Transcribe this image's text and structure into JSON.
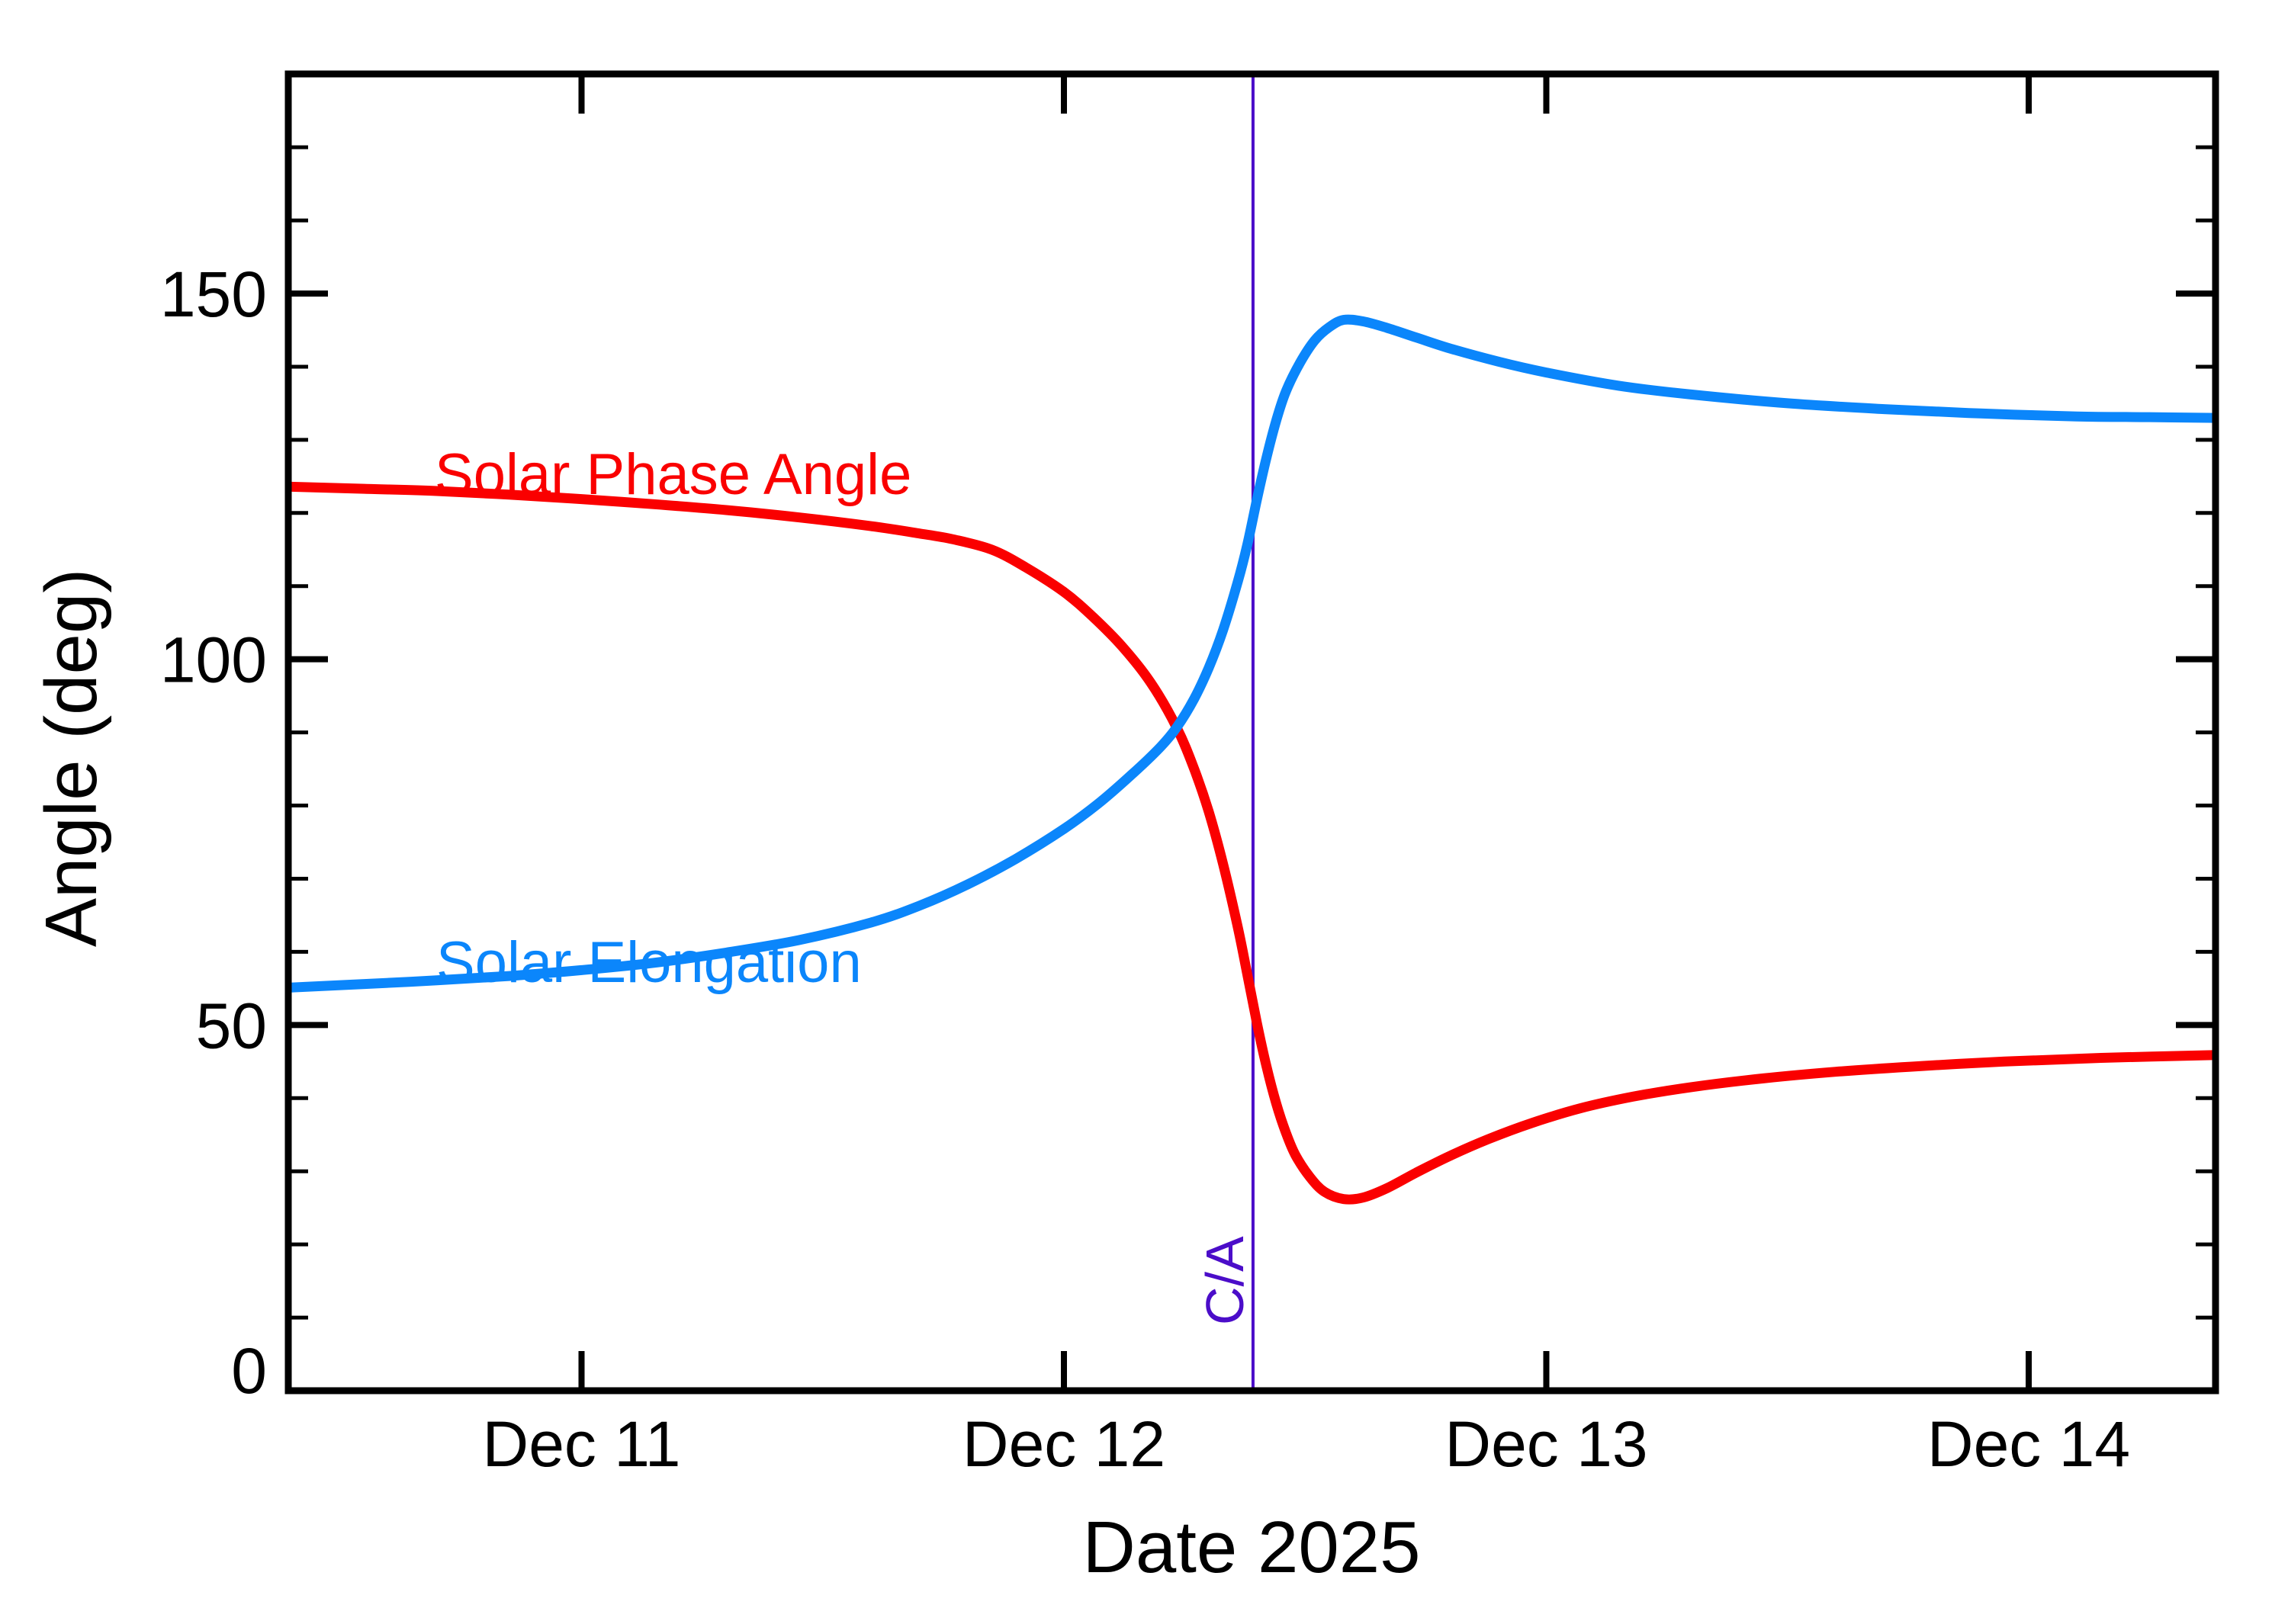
{
  "figure": {
    "background_color": "#ffffff",
    "frame_color": "#000000"
  },
  "axes": {
    "x": {
      "title": "Date 2025",
      "tick_labels": [
        "Dec 11",
        "Dec 12",
        "Dec 13",
        "Dec 14"
      ]
    },
    "y": {
      "title": "Angle (deg)",
      "tick_labels": [
        "0",
        "50",
        "100",
        "150"
      ]
    }
  },
  "series_labels": {
    "phase": "Solar Phase Angle",
    "elongation": "Solar Elongation"
  },
  "ca": {
    "label": "C/A",
    "day": 0.392,
    "color": "#4B0DC9"
  },
  "chart_data": {
    "type": "line",
    "title": "",
    "xlabel": "Date 2025",
    "ylabel": "Angle (deg)",
    "x_unit": "days relative to Dec 12 2025 00:00 UT",
    "xlim_days": [
      -1.608,
      2.388
    ],
    "ylim": [
      0,
      180
    ],
    "x_tick_days": [
      -1,
      0,
      1,
      2
    ],
    "x_tick_labels": [
      "Dec 11",
      "Dec 12",
      "Dec 13",
      "Dec 14"
    ],
    "y_major_ticks": [
      0,
      50,
      100,
      150
    ],
    "y_minor_ticks": [
      10,
      20,
      30,
      40,
      60,
      70,
      80,
      90,
      110,
      120,
      130,
      140,
      160,
      170
    ],
    "grid": false,
    "legend_position": "inline-curve-labels",
    "annotations": [
      {
        "type": "vline",
        "label": "C/A",
        "day": 0.392,
        "color": "#4B0DC9"
      }
    ],
    "series": [
      {
        "name": "Solar Phase Angle",
        "color": "#FA0000",
        "points": [
          [
            -1.61,
            123.6
          ],
          [
            -1.45,
            123.3
          ],
          [
            -1.3,
            123.0
          ],
          [
            -1.15,
            122.5
          ],
          [
            -1.0,
            121.9
          ],
          [
            -0.85,
            121.2
          ],
          [
            -0.7,
            120.4
          ],
          [
            -0.55,
            119.4
          ],
          [
            -0.4,
            118.2
          ],
          [
            -0.3,
            117.2
          ],
          [
            -0.23,
            116.4
          ],
          [
            -0.15,
            115.0
          ],
          [
            -0.08,
            112.6
          ],
          [
            0.0,
            109.2
          ],
          [
            0.06,
            105.8
          ],
          [
            0.12,
            101.8
          ],
          [
            0.18,
            96.8
          ],
          [
            0.235,
            90.5
          ],
          [
            0.27,
            85.0
          ],
          [
            0.3,
            79.2
          ],
          [
            0.33,
            72.0
          ],
          [
            0.36,
            63.5
          ],
          [
            0.38,
            57.0
          ],
          [
            0.4,
            50.3
          ],
          [
            0.42,
            44.3
          ],
          [
            0.44,
            39.3
          ],
          [
            0.46,
            35.3
          ],
          [
            0.48,
            32.2
          ],
          [
            0.51,
            29.2
          ],
          [
            0.54,
            27.2
          ],
          [
            0.58,
            26.2
          ],
          [
            0.62,
            26.4
          ],
          [
            0.67,
            27.7
          ],
          [
            0.73,
            29.8
          ],
          [
            0.8,
            32.1
          ],
          [
            0.88,
            34.4
          ],
          [
            0.97,
            36.6
          ],
          [
            1.07,
            38.6
          ],
          [
            1.18,
            40.2
          ],
          [
            1.3,
            41.5
          ],
          [
            1.45,
            42.7
          ],
          [
            1.6,
            43.6
          ],
          [
            1.78,
            44.4
          ],
          [
            1.95,
            45.0
          ],
          [
            2.15,
            45.5
          ],
          [
            2.388,
            45.9
          ]
        ]
      },
      {
        "name": "Solar Elongation",
        "color": "#0B86FB",
        "points": [
          [
            -1.61,
            55.1
          ],
          [
            -1.45,
            55.6
          ],
          [
            -1.3,
            56.1
          ],
          [
            -1.15,
            56.7
          ],
          [
            -1.0,
            57.5
          ],
          [
            -0.85,
            58.5
          ],
          [
            -0.7,
            59.9
          ],
          [
            -0.55,
            61.6
          ],
          [
            -0.4,
            64.0
          ],
          [
            -0.3,
            66.3
          ],
          [
            -0.2,
            69.2
          ],
          [
            -0.1,
            72.7
          ],
          [
            0.0,
            76.8
          ],
          [
            0.07,
            80.2
          ],
          [
            0.14,
            84.2
          ],
          [
            0.2,
            88.0
          ],
          [
            0.235,
            90.8
          ],
          [
            0.27,
            94.6
          ],
          [
            0.3,
            98.8
          ],
          [
            0.33,
            104.0
          ],
          [
            0.36,
            110.5
          ],
          [
            0.38,
            115.6
          ],
          [
            0.4,
            121.8
          ],
          [
            0.42,
            127.6
          ],
          [
            0.44,
            132.6
          ],
          [
            0.46,
            136.6
          ],
          [
            0.49,
            140.6
          ],
          [
            0.52,
            143.6
          ],
          [
            0.55,
            145.4
          ],
          [
            0.58,
            146.4
          ],
          [
            0.62,
            146.2
          ],
          [
            0.67,
            145.3
          ],
          [
            0.73,
            144.0
          ],
          [
            0.8,
            142.5
          ],
          [
            0.9,
            140.7
          ],
          [
            1.0,
            139.2
          ],
          [
            1.15,
            137.4
          ],
          [
            1.3,
            136.2
          ],
          [
            1.5,
            135.0
          ],
          [
            1.7,
            134.2
          ],
          [
            1.9,
            133.6
          ],
          [
            2.1,
            133.2
          ],
          [
            2.25,
            133.1
          ],
          [
            2.388,
            133.0
          ]
        ]
      }
    ]
  }
}
